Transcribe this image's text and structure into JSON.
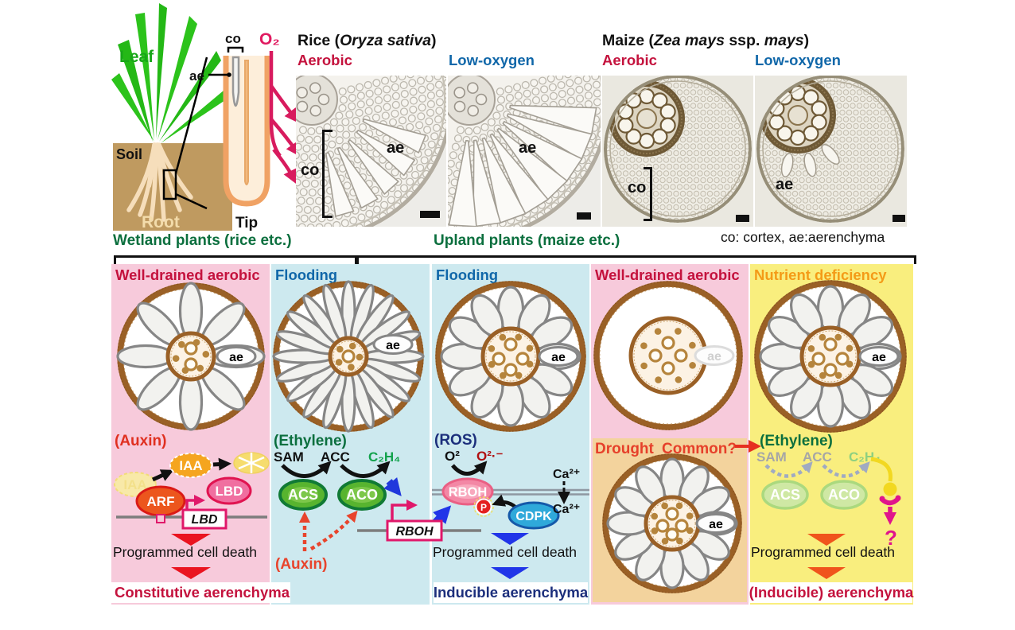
{
  "anatomy": {
    "leaf": "Leaf",
    "soil": "Soil",
    "root": "Root",
    "tip": "Tip",
    "co": "co",
    "ae": "ae",
    "o2": "O₂"
  },
  "micrographs": {
    "rice": {
      "title": [
        "Rice (",
        "Oryza sativa",
        ")"
      ],
      "cond_a": "Aerobic",
      "cond_b": "Low-oxygen",
      "a_ae": "ae",
      "a_co": "co",
      "b_ae": "ae"
    },
    "maize": {
      "title": [
        "Maize (",
        "Zea mays",
        " ssp. ",
        "mays",
        ")"
      ],
      "cond_a": "Aerobic",
      "cond_b": "Low-oxygen",
      "a_co": "co",
      "b_ae": "ae"
    },
    "legend": "co: cortex,  ae:aerenchyma"
  },
  "groups": {
    "wetland": "Wetland plants (rice etc.)",
    "upland": "Upland plants  (maize etc.)"
  },
  "panels": {
    "p1": {
      "title": "Well-drained aerobic",
      "signal": "(Auxin)",
      "iaa_faded": "IAA",
      "iaa": "IAA",
      "arf": "ARF",
      "lbd": "LBD",
      "lbd_gene": "LBD",
      "pcd": "Programmed cell death",
      "outcome": "Constitutive aerenchyma"
    },
    "p2": {
      "title": "Flooding",
      "signal": "(Ethylene)",
      "sam": "SAM",
      "acc": "ACC",
      "c2h4": "C₂H₄",
      "acs": "ACS",
      "aco": "ACO",
      "rboh_gene": "RBOH",
      "auxin": "(Auxin)"
    },
    "p3": {
      "title": "Flooding",
      "signal": "(ROS)",
      "o2": "O²",
      "o2rad": "O²·⁻",
      "rboh": "RBOH",
      "p": "P",
      "cdpk": "CDPK",
      "ca_out": "Ca²⁺",
      "ca_in": "Ca²⁺",
      "pcd": "Programmed cell death",
      "outcome": "Inducible aerenchyma"
    },
    "p4": {
      "title": "Well-drained aerobic",
      "drought": "Drought",
      "common": "Common?"
    },
    "p5": {
      "title": "Nutrient deficiency",
      "signal": "(Ethylene)",
      "sam": "SAM",
      "acc": "ACC",
      "c2h4": "C₂H₄",
      "acs": "ACS",
      "aco": "ACO",
      "question": "?",
      "pcd": "Programmed cell death",
      "outcome": "(Inducible) aerenchyma"
    }
  },
  "colors": {
    "aerobic_red": "#c4123d",
    "lowox_blue": "#1067a9",
    "green_dark": "#0b6f3e",
    "orange": "#f49b17",
    "panel_pink": "#f7cadb",
    "panel_blue": "#cde9ef",
    "panel_yellow": "#f9ee7e",
    "drought_tan": "#f3d39d",
    "ring_brown": "#9a6026",
    "crimson": "#c4123d",
    "navy": "#1c2f7c",
    "drought_red": "#e6402a",
    "magenta": "#e0186a",
    "green_bright": "#12a24c"
  }
}
